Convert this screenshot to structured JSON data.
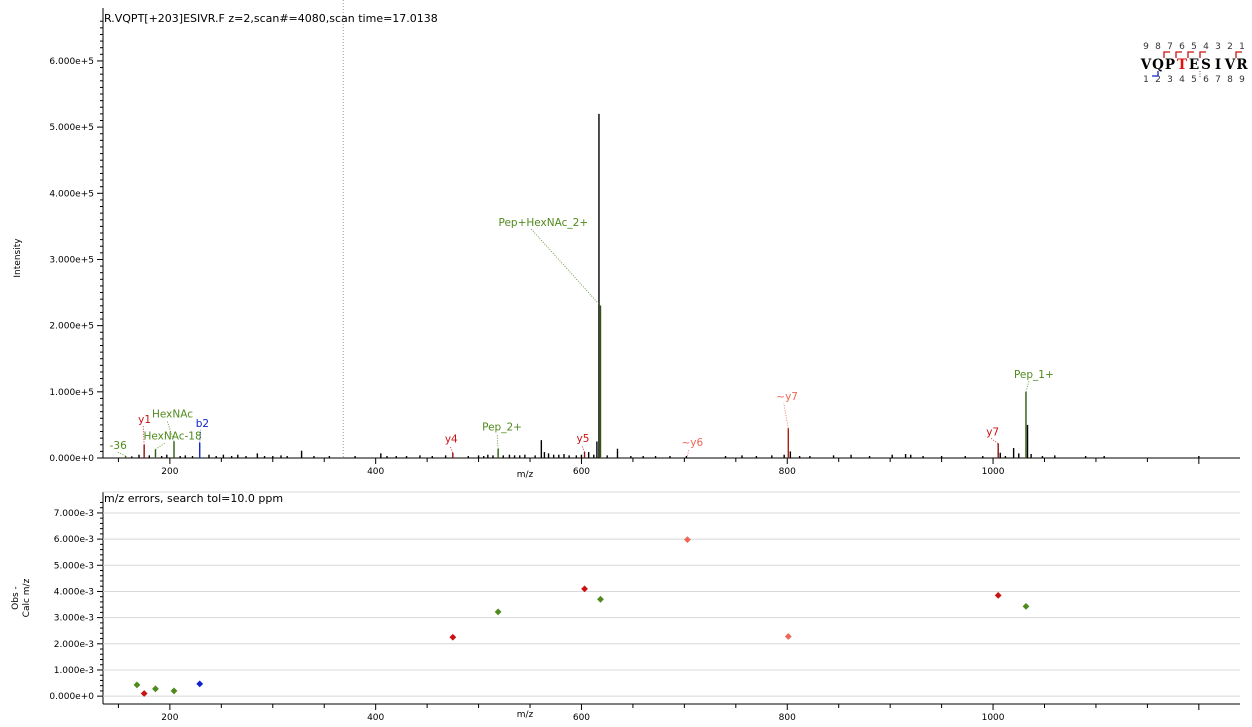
{
  "top_panel": {
    "title": "R.VQPT[+203]ESIVR.F z=2,scan#=4080,scan time=17.0138",
    "ylabel": "Intensity",
    "xlabel": "m/z",
    "y_ticks": [
      "0.000e+0",
      "1.000e+5",
      "2.000e+5",
      "3.000e+5",
      "4.000e+5",
      "5.000e+5",
      "6.000e+5"
    ],
    "x_ticks": [
      "200",
      "400",
      "600",
      "800",
      "1000"
    ]
  },
  "bottom_panel": {
    "title": "m/z errors, search tol=10.0 ppm",
    "ylabel_line1": "Obs -",
    "ylabel_line2": "Calc m/z",
    "xlabel": "m/z",
    "y_ticks": [
      "0.000e+0",
      "1.000e-3",
      "2.000e-3",
      "3.000e-3",
      "4.000e-3",
      "5.000e-3",
      "6.000e-3",
      "7.000e-3"
    ],
    "x_ticks": [
      "200",
      "400",
      "600",
      "800",
      "1000"
    ]
  },
  "sequence_map": {
    "top_numbers": [
      "9",
      "8",
      "7",
      "6",
      "5",
      "4",
      "3",
      "2",
      "1"
    ],
    "residues": [
      "V",
      "Q",
      "P",
      "T",
      "E",
      "S",
      "I",
      "V",
      "R"
    ],
    "bottom_numbers": [
      "1",
      "2",
      "3",
      "4",
      "5",
      "6",
      "7",
      "8",
      "9"
    ],
    "modified_residue_color": "#e01010"
  },
  "colors": {
    "peak": "#000000",
    "y_ion": "#cc1111",
    "b_ion": "#1122cc",
    "glyco": "#4f8a1c",
    "weak": "#ee6655",
    "grid": "#d8d8d8",
    "marker_line": "#9a9a9a"
  },
  "chart_data": [
    {
      "type": "bar",
      "title": "R.VQPT[+203]ESIVR.F z=2,scan#=4080,scan time=17.0138",
      "xlabel": "m/z",
      "ylabel": "Intensity",
      "xlim": [
        135,
        1240
      ],
      "ylim": [
        0,
        680000
      ],
      "precursor_marker_mz": 368.5,
      "peaks": [
        {
          "mz": 157,
          "i": 3000
        },
        {
          "mz": 163,
          "i": 2500
        },
        {
          "mz": 170,
          "i": 5000
        },
        {
          "mz": 175,
          "i": 20000
        },
        {
          "mz": 180,
          "i": 4000
        },
        {
          "mz": 186,
          "i": 13000
        },
        {
          "mz": 192,
          "i": 3000
        },
        {
          "mz": 197,
          "i": 5000
        },
        {
          "mz": 204,
          "i": 25000
        },
        {
          "mz": 210,
          "i": 3000
        },
        {
          "mz": 215,
          "i": 4000
        },
        {
          "mz": 222,
          "i": 3000
        },
        {
          "mz": 229,
          "i": 23000
        },
        {
          "mz": 238,
          "i": 5000
        },
        {
          "mz": 245,
          "i": 3000
        },
        {
          "mz": 252,
          "i": 5000
        },
        {
          "mz": 260,
          "i": 3000
        },
        {
          "mz": 266,
          "i": 5000
        },
        {
          "mz": 274,
          "i": 3000
        },
        {
          "mz": 285,
          "i": 7000
        },
        {
          "mz": 292,
          "i": 3000
        },
        {
          "mz": 300,
          "i": 3000
        },
        {
          "mz": 308,
          "i": 4000
        },
        {
          "mz": 314,
          "i": 3000
        },
        {
          "mz": 328,
          "i": 11000
        },
        {
          "mz": 340,
          "i": 3000
        },
        {
          "mz": 355,
          "i": 3000
        },
        {
          "mz": 380,
          "i": 3000
        },
        {
          "mz": 405,
          "i": 7000
        },
        {
          "mz": 411,
          "i": 3000
        },
        {
          "mz": 420,
          "i": 3000
        },
        {
          "mz": 430,
          "i": 3000
        },
        {
          "mz": 443,
          "i": 4000
        },
        {
          "mz": 455,
          "i": 3000
        },
        {
          "mz": 468,
          "i": 4000
        },
        {
          "mz": 475,
          "i": 8000
        },
        {
          "mz": 490,
          "i": 3000
        },
        {
          "mz": 500,
          "i": 4000
        },
        {
          "mz": 505,
          "i": 3000
        },
        {
          "mz": 509,
          "i": 5000
        },
        {
          "mz": 514,
          "i": 4000
        },
        {
          "mz": 519,
          "i": 14000
        },
        {
          "mz": 524,
          "i": 4000
        },
        {
          "mz": 530,
          "i": 5000
        },
        {
          "mz": 535,
          "i": 4000
        },
        {
          "mz": 540,
          "i": 4000
        },
        {
          "mz": 545,
          "i": 5000
        },
        {
          "mz": 555,
          "i": 4000
        },
        {
          "mz": 561,
          "i": 27000
        },
        {
          "mz": 564,
          "i": 9000
        },
        {
          "mz": 568,
          "i": 7000
        },
        {
          "mz": 573,
          "i": 5000
        },
        {
          "mz": 578,
          "i": 5000
        },
        {
          "mz": 583,
          "i": 6000
        },
        {
          "mz": 588,
          "i": 4000
        },
        {
          "mz": 595,
          "i": 4000
        },
        {
          "mz": 600,
          "i": 5000
        },
        {
          "mz": 603,
          "i": 9000
        },
        {
          "mz": 607,
          "i": 9000
        },
        {
          "mz": 612,
          "i": 5000
        },
        {
          "mz": 615,
          "i": 25000
        },
        {
          "mz": 617,
          "i": 520000
        },
        {
          "mz": 618.5,
          "i": 230000
        },
        {
          "mz": 625,
          "i": 4000
        },
        {
          "mz": 635,
          "i": 14000
        },
        {
          "mz": 648,
          "i": 3000
        },
        {
          "mz": 660,
          "i": 3000
        },
        {
          "mz": 672,
          "i": 3000
        },
        {
          "mz": 686,
          "i": 3000
        },
        {
          "mz": 702,
          "i": 3000
        },
        {
          "mz": 740,
          "i": 3000
        },
        {
          "mz": 756,
          "i": 4000
        },
        {
          "mz": 770,
          "i": 3000
        },
        {
          "mz": 785,
          "i": 4000
        },
        {
          "mz": 797,
          "i": 5000
        },
        {
          "mz": 801,
          "i": 45000
        },
        {
          "mz": 803,
          "i": 10000
        },
        {
          "mz": 812,
          "i": 3000
        },
        {
          "mz": 822,
          "i": 3000
        },
        {
          "mz": 845,
          "i": 4000
        },
        {
          "mz": 862,
          "i": 5000
        },
        {
          "mz": 880,
          "i": 3000
        },
        {
          "mz": 902,
          "i": 5000
        },
        {
          "mz": 915,
          "i": 6000
        },
        {
          "mz": 920,
          "i": 5000
        },
        {
          "mz": 932,
          "i": 3000
        },
        {
          "mz": 950,
          "i": 3000
        },
        {
          "mz": 973,
          "i": 3000
        },
        {
          "mz": 990,
          "i": 3000
        },
        {
          "mz": 1005,
          "i": 22000
        },
        {
          "mz": 1007,
          "i": 8000
        },
        {
          "mz": 1012,
          "i": 3000
        },
        {
          "mz": 1020,
          "i": 15000
        },
        {
          "mz": 1025,
          "i": 7000
        },
        {
          "mz": 1032,
          "i": 100000
        },
        {
          "mz": 1033.5,
          "i": 50000
        },
        {
          "mz": 1037,
          "i": 6000
        },
        {
          "mz": 1048,
          "i": 3000
        },
        {
          "mz": 1060,
          "i": 4000
        },
        {
          "mz": 1090,
          "i": 3000
        },
        {
          "mz": 1108,
          "i": 3000
        },
        {
          "mz": 1200,
          "i": 3000
        }
      ],
      "annotations": [
        {
          "label": "-36",
          "mz": 157,
          "i": 3000,
          "kind": "glyco"
        },
        {
          "label": "HexNAc-18",
          "mz": 186,
          "i": 13000,
          "kind": "glyco"
        },
        {
          "label": "y1",
          "mz": 175,
          "i": 20000,
          "kind": "y"
        },
        {
          "label": "HexNAc",
          "mz": 204,
          "i": 25000,
          "kind": "glyco"
        },
        {
          "label": "b2",
          "mz": 229,
          "i": 23000,
          "kind": "b"
        },
        {
          "label": "y4",
          "mz": 475,
          "i": 8000,
          "kind": "y"
        },
        {
          "label": "Pep_2+",
          "mz": 519,
          "i": 14000,
          "kind": "glyco"
        },
        {
          "label": "y5",
          "mz": 603,
          "i": 9000,
          "kind": "y"
        },
        {
          "label": "Pep+HexNAc_2+",
          "mz": 618.5,
          "i": 230000,
          "kind": "glyco"
        },
        {
          "label": "~y6",
          "mz": 703,
          "i": 3000,
          "kind": "weak"
        },
        {
          "label": "~y7",
          "mz": 801,
          "i": 45000,
          "kind": "weak"
        },
        {
          "label": "y7",
          "mz": 1005,
          "i": 22000,
          "kind": "y"
        },
        {
          "label": "Pep_1+",
          "mz": 1032,
          "i": 100000,
          "kind": "glyco"
        }
      ]
    },
    {
      "type": "scatter",
      "title": "m/z errors, search tol=10.0 ppm",
      "xlabel": "m/z",
      "ylabel": "Obs - Calc m/z",
      "xlim": [
        135,
        1240
      ],
      "ylim": [
        -0.0003,
        0.0078
      ],
      "points": [
        {
          "mz": 168,
          "err": 0.00043,
          "kind": "glyco"
        },
        {
          "mz": 175,
          "err": 0.0001,
          "kind": "y"
        },
        {
          "mz": 186,
          "err": 0.00028,
          "kind": "glyco"
        },
        {
          "mz": 204,
          "err": 0.0002,
          "kind": "glyco"
        },
        {
          "mz": 229,
          "err": 0.00047,
          "kind": "b"
        },
        {
          "mz": 475,
          "err": 0.00225,
          "kind": "y"
        },
        {
          "mz": 519,
          "err": 0.00322,
          "kind": "glyco"
        },
        {
          "mz": 603,
          "err": 0.0041,
          "kind": "y"
        },
        {
          "mz": 618.5,
          "err": 0.0037,
          "kind": "glyco"
        },
        {
          "mz": 703,
          "err": 0.00598,
          "kind": "weak"
        },
        {
          "mz": 801,
          "err": 0.00228,
          "kind": "weak"
        },
        {
          "mz": 1005,
          "err": 0.00385,
          "kind": "y"
        },
        {
          "mz": 1032,
          "err": 0.00343,
          "kind": "glyco"
        }
      ]
    }
  ]
}
